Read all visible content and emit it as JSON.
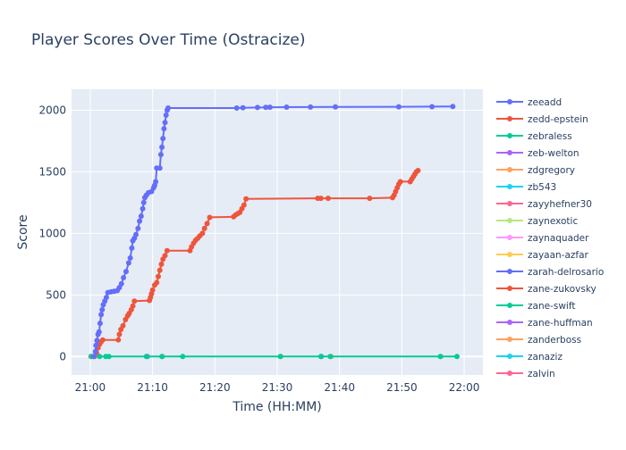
{
  "chart_data": {
    "type": "line",
    "title": "Player Scores Over Time (Ostracize)",
    "xlabel": "Time (HH:MM)",
    "ylabel": "Score",
    "x_unit": "time of day (minutes after 21:00)",
    "xlim": [
      "20:57",
      "22:03"
    ],
    "ylim": [
      -150,
      2170
    ],
    "x_ticks": [
      "21:00",
      "21:10",
      "21:20",
      "21:30",
      "21:40",
      "21:50",
      "22:00"
    ],
    "y_ticks": [
      0,
      500,
      1000,
      1500,
      2000
    ],
    "grid": true,
    "legend_position": "right",
    "colors": {
      "plot_bg": "#e5ecf6",
      "grid": "#ffffff",
      "text": "#2a3f5f"
    },
    "series": [
      {
        "name": "zeeadd",
        "color": "#636efa",
        "points": [
          [
            "21:00:35",
            0
          ],
          [
            "21:00:50",
            40
          ],
          [
            "21:00:55",
            90
          ],
          [
            "21:01:05",
            130
          ],
          [
            "21:01:15",
            180
          ],
          [
            "21:01:25",
            200
          ],
          [
            "21:01:35",
            270
          ],
          [
            "21:01:45",
            340
          ],
          [
            "21:01:55",
            380
          ],
          [
            "21:02:05",
            420
          ],
          [
            "21:02:20",
            450
          ],
          [
            "21:02:35",
            480
          ],
          [
            "21:02:50",
            520
          ],
          [
            "21:03:20",
            525
          ],
          [
            "21:03:50",
            530
          ],
          [
            "21:04:20",
            535
          ],
          [
            "21:04:40",
            560
          ],
          [
            "21:05:00",
            590
          ],
          [
            "21:05:20",
            640
          ],
          [
            "21:05:45",
            690
          ],
          [
            "21:06:10",
            760
          ],
          [
            "21:06:25",
            800
          ],
          [
            "21:06:40",
            880
          ],
          [
            "21:06:50",
            940
          ],
          [
            "21:07:05",
            960
          ],
          [
            "21:07:20",
            990
          ],
          [
            "21:07:40",
            1040
          ],
          [
            "21:07:55",
            1100
          ],
          [
            "21:08:10",
            1140
          ],
          [
            "21:08:25",
            1200
          ],
          [
            "21:08:35",
            1250
          ],
          [
            "21:08:45",
            1290
          ],
          [
            "21:09:00",
            1310
          ],
          [
            "21:09:20",
            1330
          ],
          [
            "21:09:50",
            1340
          ],
          [
            "21:10:10",
            1370
          ],
          [
            "21:10:20",
            1390
          ],
          [
            "21:10:30",
            1420
          ],
          [
            "21:10:40",
            1530
          ],
          [
            "21:11:10",
            1530
          ],
          [
            "21:11:20",
            1640
          ],
          [
            "21:11:30",
            1700
          ],
          [
            "21:11:40",
            1770
          ],
          [
            "21:11:50",
            1850
          ],
          [
            "21:12:00",
            1900
          ],
          [
            "21:12:10",
            1960
          ],
          [
            "21:12:20",
            2000
          ],
          [
            "21:12:30",
            2018
          ],
          [
            "21:23:30",
            2018
          ],
          [
            "21:24:30",
            2020
          ],
          [
            "21:26:50",
            2022
          ],
          [
            "21:28:10",
            2023
          ],
          [
            "21:28:50",
            2024
          ],
          [
            "21:31:30",
            2025
          ],
          [
            "21:35:20",
            2026
          ],
          [
            "21:39:20",
            2027
          ],
          [
            "21:49:30",
            2028
          ],
          [
            "21:54:50",
            2029
          ],
          [
            "21:58:10",
            2030
          ]
        ]
      },
      {
        "name": "zedd-epstein",
        "color": "#ef553b",
        "points": [
          [
            "21:00:40",
            0
          ],
          [
            "21:01:00",
            30
          ],
          [
            "21:01:15",
            70
          ],
          [
            "21:01:30",
            100
          ],
          [
            "21:01:45",
            120
          ],
          [
            "21:02:00",
            135
          ],
          [
            "21:04:30",
            135
          ],
          [
            "21:04:40",
            180
          ],
          [
            "21:04:55",
            220
          ],
          [
            "21:05:15",
            250
          ],
          [
            "21:05:40",
            300
          ],
          [
            "21:06:00",
            330
          ],
          [
            "21:06:15",
            350
          ],
          [
            "21:06:35",
            380
          ],
          [
            "21:06:50",
            410
          ],
          [
            "21:07:05",
            450
          ],
          [
            "21:09:30",
            455
          ],
          [
            "21:09:40",
            480
          ],
          [
            "21:09:50",
            510
          ],
          [
            "21:10:00",
            540
          ],
          [
            "21:10:20",
            580
          ],
          [
            "21:10:40",
            600
          ],
          [
            "21:10:55",
            650
          ],
          [
            "21:11:10",
            700
          ],
          [
            "21:11:25",
            750
          ],
          [
            "21:11:40",
            790
          ],
          [
            "21:12:00",
            820
          ],
          [
            "21:12:20",
            860
          ],
          [
            "21:16:00",
            860
          ],
          [
            "21:16:15",
            890
          ],
          [
            "21:16:35",
            920
          ],
          [
            "21:16:55",
            945
          ],
          [
            "21:17:15",
            960
          ],
          [
            "21:17:35",
            980
          ],
          [
            "21:18:00",
            1000
          ],
          [
            "21:18:20",
            1040
          ],
          [
            "21:18:45",
            1080
          ],
          [
            "21:19:10",
            1130
          ],
          [
            "21:23:00",
            1135
          ],
          [
            "21:23:20",
            1150
          ],
          [
            "21:23:40",
            1160
          ],
          [
            "21:24:00",
            1170
          ],
          [
            "21:24:20",
            1200
          ],
          [
            "21:24:40",
            1230
          ],
          [
            "21:25:00",
            1280
          ],
          [
            "21:36:30",
            1285
          ],
          [
            "21:37:00",
            1285
          ],
          [
            "21:38:10",
            1285
          ],
          [
            "21:44:50",
            1285
          ],
          [
            "21:48:30",
            1290
          ],
          [
            "21:48:45",
            1310
          ],
          [
            "21:49:00",
            1340
          ],
          [
            "21:49:15",
            1370
          ],
          [
            "21:49:30",
            1400
          ],
          [
            "21:49:45",
            1420
          ],
          [
            "21:51:20",
            1420
          ],
          [
            "21:51:35",
            1440
          ],
          [
            "21:51:50",
            1460
          ],
          [
            "21:52:05",
            1480
          ],
          [
            "21:52:20",
            1500
          ],
          [
            "21:52:35",
            1510
          ]
        ]
      },
      {
        "name": "zebraless",
        "color": "#00cc96",
        "points": [
          [
            "21:00:10",
            0
          ],
          [
            "21:01:30",
            0
          ],
          [
            "21:02:30",
            0
          ],
          [
            "21:03:00",
            0
          ],
          [
            "21:09:00",
            0
          ],
          [
            "21:11:30",
            0
          ],
          [
            "21:14:50",
            0
          ],
          [
            "21:30:30",
            0
          ],
          [
            "21:37:00",
            0
          ],
          [
            "21:38:30",
            0
          ],
          [
            "21:56:10",
            0
          ],
          [
            "21:58:50",
            0
          ]
        ]
      }
    ],
    "legend_entries": [
      {
        "name": "zeeadd",
        "color": "#636efa"
      },
      {
        "name": "zedd-epstein",
        "color": "#ef553b"
      },
      {
        "name": "zebraless",
        "color": "#00cc96"
      },
      {
        "name": "zeb-welton",
        "color": "#ab63fa"
      },
      {
        "name": "zdgregory",
        "color": "#ffa15a"
      },
      {
        "name": "zb543",
        "color": "#19d3f3"
      },
      {
        "name": "zayyhefner30",
        "color": "#ff6692"
      },
      {
        "name": "zaynexotic",
        "color": "#b6e880"
      },
      {
        "name": "zaynaquader",
        "color": "#ff97ff"
      },
      {
        "name": "zayaan-azfar",
        "color": "#fecb52"
      },
      {
        "name": "zarah-delrosario",
        "color": "#636efa"
      },
      {
        "name": "zane-zukovsky",
        "color": "#ef553b"
      },
      {
        "name": "zane-swift",
        "color": "#00cc96"
      },
      {
        "name": "zane-huffman",
        "color": "#ab63fa"
      },
      {
        "name": "zanderboss",
        "color": "#ffa15a"
      },
      {
        "name": "zanaziz",
        "color": "#19d3f3"
      },
      {
        "name": "zalvin",
        "color": "#ff6692"
      }
    ],
    "extra_markers": [
      {
        "x": "21:00:05",
        "y": 0,
        "color": "#ffa15a"
      },
      {
        "x": "21:09:10",
        "y": 0,
        "color": "#ab63fa"
      },
      {
        "x": "21:11:35",
        "y": 0,
        "color": "#ffa15a"
      },
      {
        "x": "21:30:35",
        "y": 0,
        "color": "#ffa15a"
      },
      {
        "x": "21:37:05",
        "y": 0,
        "color": "#ab63fa"
      },
      {
        "x": "21:38:40",
        "y": 0,
        "color": "#ffa15a"
      },
      {
        "x": "21:56:15",
        "y": 0,
        "color": "#ffa15a"
      }
    ]
  }
}
